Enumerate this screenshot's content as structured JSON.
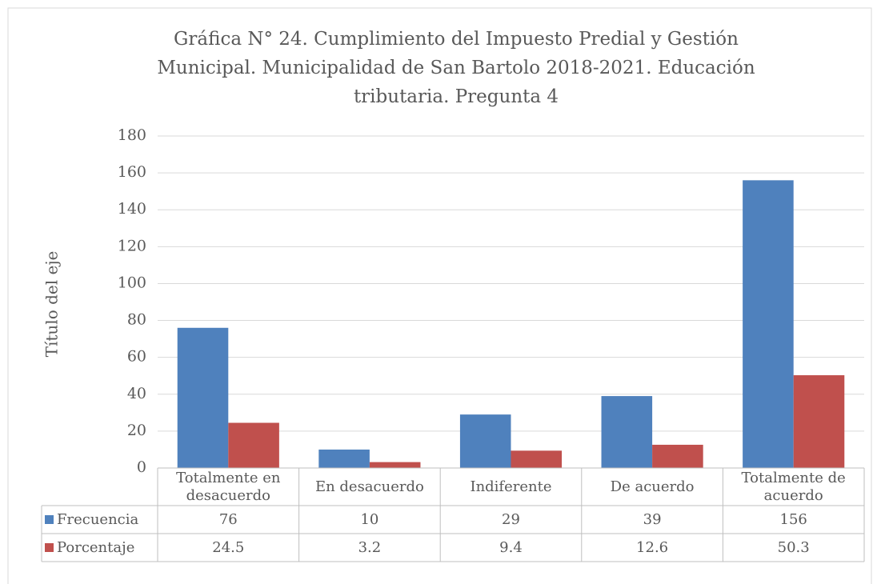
{
  "chart_data": {
    "type": "bar",
    "title": [
      "Gráfica N° 24. Cumplimiento del Impuesto Predial y Gestión",
      "Municipal. Municipalidad de San Bartolo 2018-2021. Educación",
      "tributaria. Pregunta 4"
    ],
    "y_axis_title": "Título del eje",
    "categories": [
      "Totalmente en desacuerdo",
      "En desacuerdo",
      "Indiferente",
      "De acuerdo",
      "Totalmente de acuerdo"
    ],
    "series": [
      {
        "name": "Frecuencia",
        "color": "#4f81bd",
        "values": [
          76,
          10,
          29,
          39,
          156
        ]
      },
      {
        "name": "Porcentaje",
        "color": "#c0504d",
        "values": [
          24.5,
          3.2,
          9.4,
          12.6,
          50.3
        ]
      }
    ],
    "ylim": [
      0,
      180
    ],
    "yticks": [
      0,
      20,
      40,
      60,
      80,
      100,
      120,
      140,
      160,
      180
    ],
    "grid": true,
    "data_table": true
  }
}
